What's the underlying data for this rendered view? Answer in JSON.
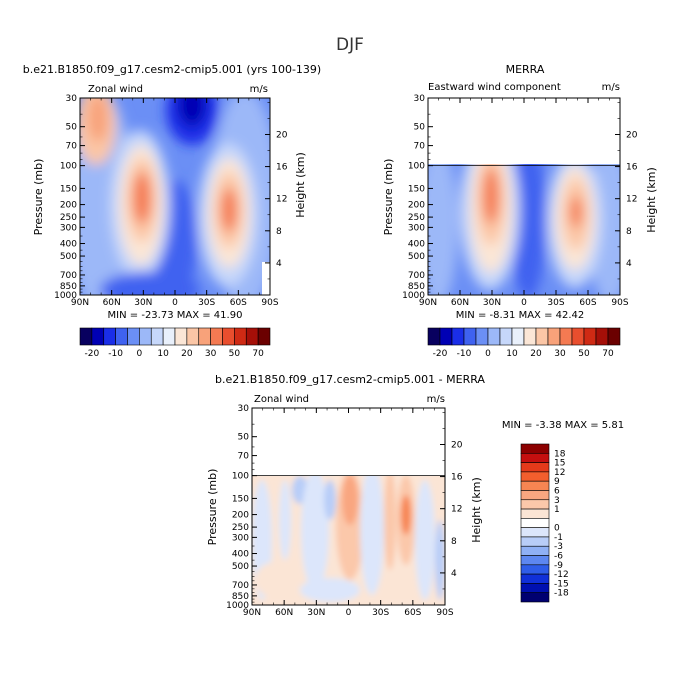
{
  "page": {
    "title": "DJF"
  },
  "chart_data": [
    {
      "type": "heatmap",
      "id": "model",
      "title": "b.e21.B1850.f09_g17.cesm2-cmip5.001 (yrs 100-139)",
      "left_label": "Zonal wind",
      "right_label": "m/s",
      "ylabel": "Pressure (mb)",
      "ylabel_right": "Height (km)",
      "x_ticks": [
        "90N",
        "60N",
        "30N",
        "0",
        "30S",
        "60S",
        "90S"
      ],
      "x_values": [
        90,
        60,
        30,
        0,
        -30,
        -60,
        -90
      ],
      "y_ticks": [
        "30",
        "50",
        "70",
        "100",
        "150",
        "200",
        "250",
        "300",
        "400",
        "500",
        "700",
        "850",
        "1000"
      ],
      "y_values": [
        30,
        50,
        70,
        100,
        150,
        200,
        250,
        300,
        400,
        500,
        700,
        850,
        1000
      ],
      "ylim": [
        1000,
        30
      ],
      "height_ticks": [
        "4",
        "8",
        "12",
        "16",
        "20"
      ],
      "height_values": [
        4,
        8,
        12,
        16,
        20
      ],
      "stats": "MIN = -23.73   MAX =  41.90",
      "min": -23.73,
      "max": 41.9
    },
    {
      "type": "heatmap",
      "id": "obs",
      "title": "MERRA",
      "left_label": "Eastward wind component",
      "right_label": "m/s",
      "ylabel": "Pressure (mb)",
      "ylabel_right": "Height (km)",
      "x_ticks": [
        "90N",
        "60N",
        "30N",
        "0",
        "30S",
        "60S",
        "90S"
      ],
      "x_values": [
        90,
        60,
        30,
        0,
        -30,
        -60,
        -90
      ],
      "y_ticks": [
        "30",
        "50",
        "70",
        "100",
        "150",
        "200",
        "250",
        "300",
        "400",
        "500",
        "700",
        "850",
        "1000"
      ],
      "y_values": [
        30,
        50,
        70,
        100,
        150,
        200,
        250,
        300,
        400,
        500,
        700,
        850,
        1000
      ],
      "ylim": [
        1000,
        30
      ],
      "data_top_pressure": 100,
      "height_ticks": [
        "4",
        "8",
        "12",
        "16",
        "20"
      ],
      "height_values": [
        4,
        8,
        12,
        16,
        20
      ],
      "stats": "MIN =  -8.31   MAX =  42.42",
      "min": -8.31,
      "max": 42.42
    },
    {
      "type": "heatmap",
      "id": "diff",
      "title": "b.e21.B1850.f09_g17.cesm2-cmip5.001 - MERRA",
      "left_label": "Zonal wind",
      "right_label": "m/s",
      "ylabel": "Pressure (mb)",
      "ylabel_right": "Height (km)",
      "x_ticks": [
        "90N",
        "60N",
        "30N",
        "0",
        "30S",
        "60S",
        "90S"
      ],
      "x_values": [
        90,
        60,
        30,
        0,
        -30,
        -60,
        -90
      ],
      "y_ticks": [
        "30",
        "50",
        "70",
        "100",
        "150",
        "200",
        "250",
        "300",
        "400",
        "500",
        "700",
        "850",
        "1000"
      ],
      "y_values": [
        30,
        50,
        70,
        100,
        150,
        200,
        250,
        300,
        400,
        500,
        700,
        850,
        1000
      ],
      "ylim": [
        1000,
        30
      ],
      "data_top_pressure": 100,
      "height_ticks": [
        "4",
        "8",
        "12",
        "16",
        "20"
      ],
      "height_values": [
        4,
        8,
        12,
        16,
        20
      ],
      "stats": "MIN =  -3.38   MAX =   5.81",
      "min": -3.38,
      "max": 5.81
    }
  ],
  "colorbar_main": {
    "orientation": "horizontal",
    "labels": [
      "-20",
      "-10",
      "0",
      "10",
      "20",
      "30",
      "50",
      "70"
    ],
    "colors": [
      "#08005f",
      "#0000b4",
      "#1a2ee8",
      "#3f62f0",
      "#6b8ff5",
      "#9cb8f8",
      "#c6d7fa",
      "#e9f0fb",
      "#fbe6d6",
      "#fbc6a6",
      "#f8a27a",
      "#f47a52",
      "#e94e2e",
      "#cf2a14",
      "#a50f08",
      "#6b0000"
    ]
  },
  "colorbar_diff": {
    "orientation": "vertical",
    "labels": [
      "18",
      "15",
      "12",
      "9",
      "6",
      "3",
      "1",
      "0",
      "-1",
      "-3",
      "-6",
      "-9",
      "-12",
      "-15",
      "-18"
    ],
    "colors": [
      "#8c0000",
      "#c40f0f",
      "#e43a1a",
      "#f35e2d",
      "#f78552",
      "#f9a680",
      "#fbc8aa",
      "#fbe5d5",
      "#ffffff",
      "#dce6fb",
      "#b8cdf8",
      "#8fb0f5",
      "#5d87f0",
      "#2f5de8",
      "#1030d8",
      "#0010b0",
      "#000070"
    ]
  }
}
